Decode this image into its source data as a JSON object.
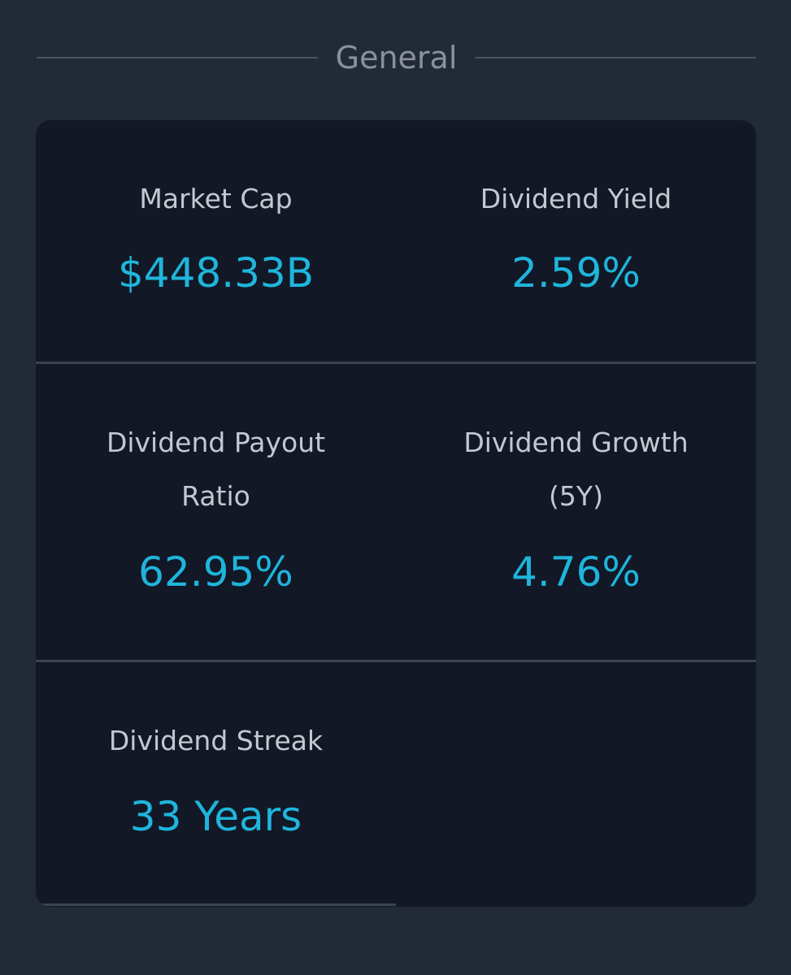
{
  "section": {
    "title": "General"
  },
  "metrics": [
    {
      "label": "Market Cap",
      "value": "$448.33B"
    },
    {
      "label": "Dividend Yield",
      "value": "2.59%"
    },
    {
      "label": "Dividend Payout Ratio",
      "value": "62.95%"
    },
    {
      "label": "Dividend Growth (5Y)",
      "value": "4.76%"
    },
    {
      "label": "Dividend Streak",
      "value": "33 Years"
    }
  ],
  "colors": {
    "background": "#222a38",
    "card": "#121826",
    "label": "#c4c8cf",
    "value": "#1fb5dc",
    "divider": "#3b4352"
  }
}
